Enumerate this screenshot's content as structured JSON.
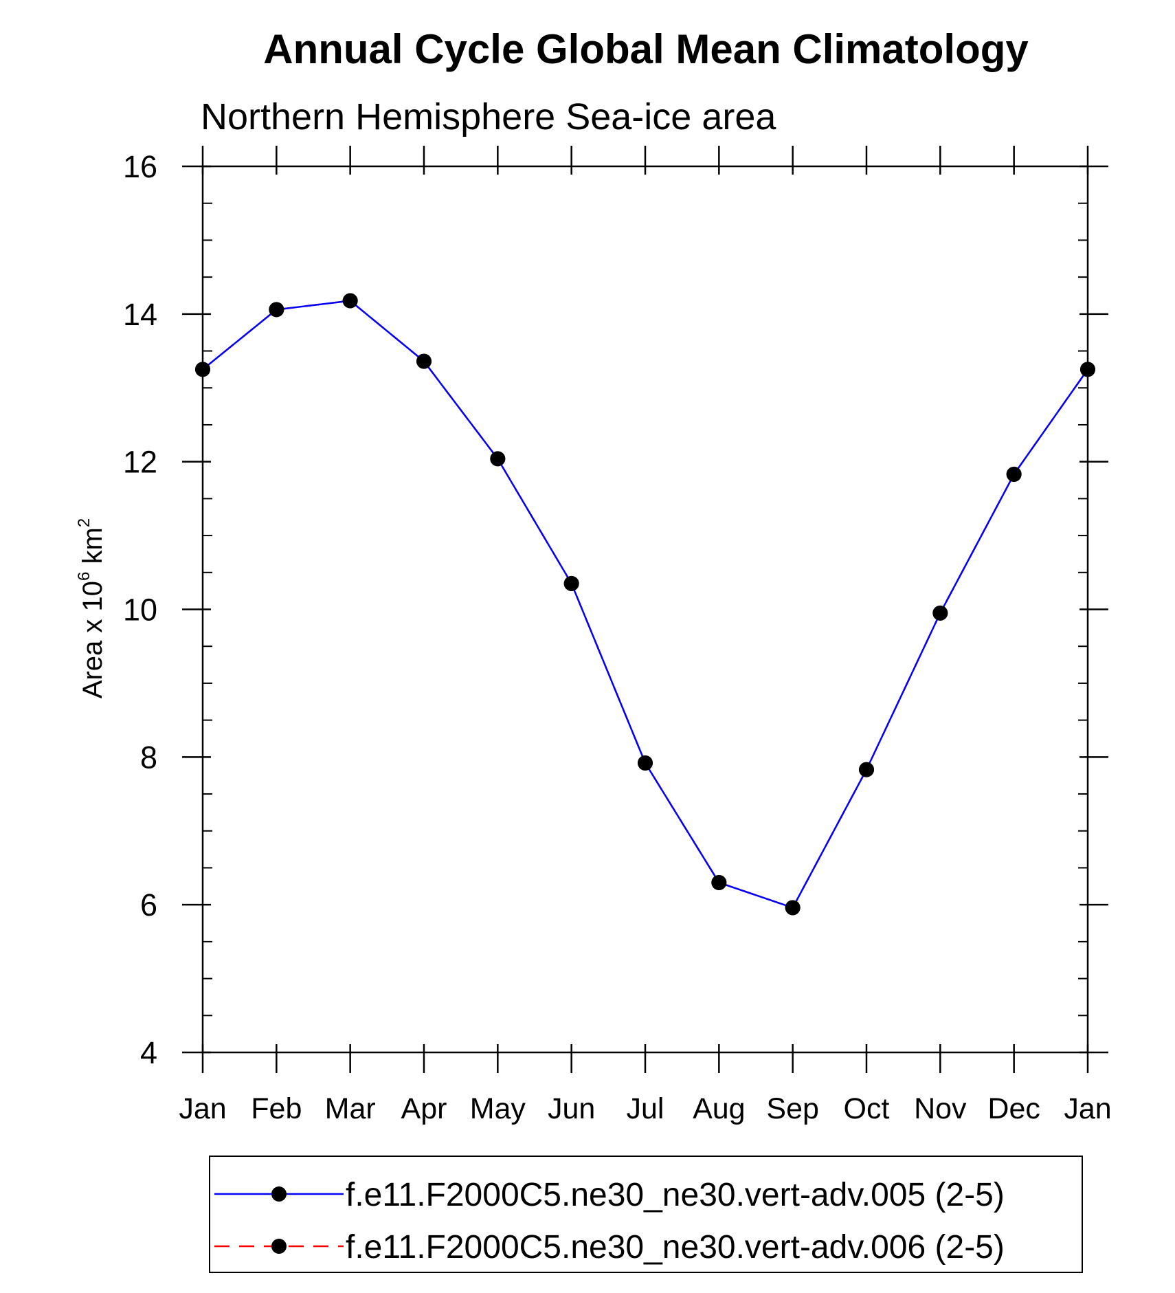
{
  "chart_data": {
    "type": "line",
    "title": "Annual Cycle Global Mean Climatology",
    "subtitle": "Northern Hemisphere Sea-ice area",
    "ylabel": {
      "prefix": "Area x 10",
      "exponent1": "6",
      "unit": " km",
      "exponent2": "2"
    },
    "xlabel": "",
    "categories": [
      "Jan",
      "Feb",
      "Mar",
      "Apr",
      "May",
      "Jun",
      "Jul",
      "Aug",
      "Sep",
      "Oct",
      "Nov",
      "Dec",
      "Jan"
    ],
    "ylim": [
      4,
      16
    ],
    "yticks": [
      4,
      6,
      8,
      10,
      12,
      14,
      16
    ],
    "y_minor_step": 0.5,
    "series": [
      {
        "name": "f.e11.F2000C5.ne30_ne30.vert-adv.005 (2-5)",
        "color": "#0000ff",
        "line_style": "solid",
        "marker": "filled-circle",
        "marker_color": "#000000",
        "values": [
          13.25,
          14.06,
          14.18,
          13.36,
          12.04,
          10.35,
          7.92,
          6.3,
          5.96,
          7.83,
          9.95,
          11.83,
          13.25
        ]
      },
      {
        "name": "f.e11.F2000C5.ne30_ne30.vert-adv.006 (2-5)",
        "color": "#ff0000",
        "line_style": "dashed",
        "marker": "filled-circle",
        "marker_color": "#000000",
        "values": [
          13.25,
          14.06,
          14.18,
          13.36,
          12.04,
          10.35,
          7.92,
          6.3,
          5.96,
          7.83,
          9.95,
          11.83,
          13.25
        ]
      }
    ],
    "legend_position": "bottom",
    "grid": false
  }
}
